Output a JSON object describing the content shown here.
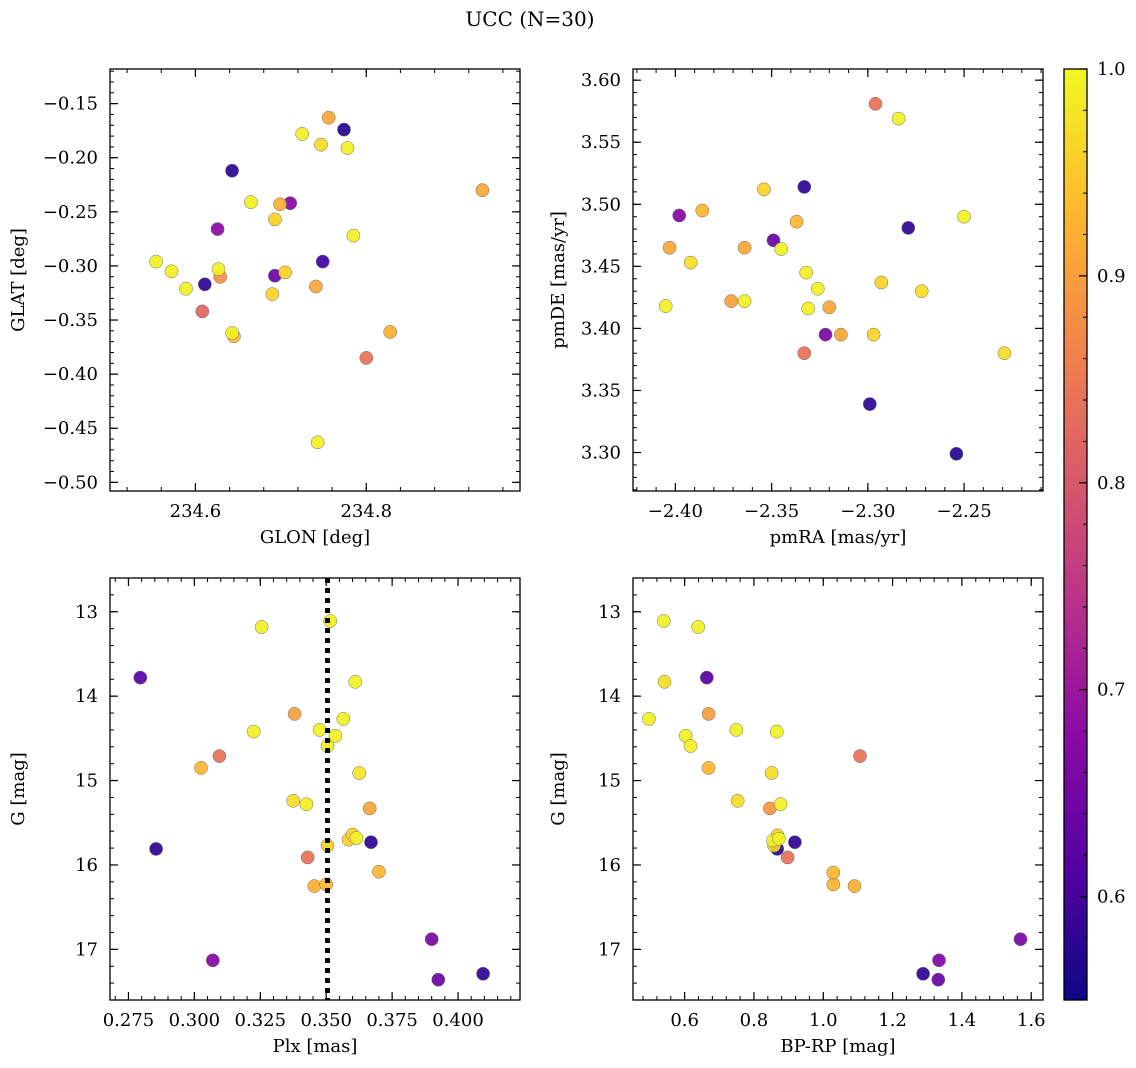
{
  "figure": {
    "title": "UCC (N=30)"
  },
  "colorbar": {
    "min": 0.55,
    "max": 1.0,
    "ticks": [
      0.6,
      0.7,
      0.8,
      0.9,
      1.0
    ],
    "tick_labels": [
      "0.6",
      "0.7",
      "0.8",
      "0.9",
      "1.0"
    ],
    "colormap": "plasma"
  },
  "chart_data": [
    {
      "type": "scatter",
      "title": "",
      "xlabel": "GLON [deg]",
      "ylabel": "GLAT [deg]",
      "xlim": [
        234.5,
        234.98
      ],
      "ylim": [
        -0.508,
        -0.118
      ],
      "y_inverted": false,
      "xticks": [
        234.6,
        234.8
      ],
      "xtick_labels": [
        "234.6",
        "234.8"
      ],
      "yticks": [
        -0.15,
        -0.2,
        -0.25,
        -0.3,
        -0.35,
        -0.4,
        -0.45,
        -0.5
      ],
      "ytick_labels": [
        "−0.15",
        "−0.20",
        "−0.25",
        "−0.30",
        "−0.35",
        "−0.40",
        "−0.45",
        "−0.50"
      ],
      "points": [
        {
          "x": 234.554,
          "y": -0.296,
          "c": 0.99
        },
        {
          "x": 234.572,
          "y": -0.305,
          "c": 0.99
        },
        {
          "x": 234.589,
          "y": -0.321,
          "c": 0.99
        },
        {
          "x": 234.608,
          "y": -0.342,
          "c": 0.82
        },
        {
          "x": 234.611,
          "y": -0.317,
          "c": 0.58
        },
        {
          "x": 234.626,
          "y": -0.266,
          "c": 0.68
        },
        {
          "x": 234.627,
          "y": -0.303,
          "c": 0.99
        },
        {
          "x": 234.629,
          "y": -0.31,
          "c": 0.88
        },
        {
          "x": 234.643,
          "y": -0.212,
          "c": 0.58
        },
        {
          "x": 234.643,
          "y": -0.362,
          "c": 0.99
        },
        {
          "x": 234.645,
          "y": -0.365,
          "c": 0.93
        },
        {
          "x": 234.665,
          "y": -0.241,
          "c": 0.99
        },
        {
          "x": 234.69,
          "y": -0.326,
          "c": 0.96
        },
        {
          "x": 234.693,
          "y": -0.309,
          "c": 0.64
        },
        {
          "x": 234.693,
          "y": -0.257,
          "c": 0.96
        },
        {
          "x": 234.699,
          "y": -0.243,
          "c": 0.92
        },
        {
          "x": 234.705,
          "y": -0.306,
          "c": 0.96
        },
        {
          "x": 234.711,
          "y": -0.242,
          "c": 0.67
        },
        {
          "x": 234.725,
          "y": -0.178,
          "c": 0.99
        },
        {
          "x": 234.741,
          "y": -0.319,
          "c": 0.91
        },
        {
          "x": 234.743,
          "y": -0.463,
          "c": 0.99
        },
        {
          "x": 234.747,
          "y": -0.188,
          "c": 0.97
        },
        {
          "x": 234.749,
          "y": -0.296,
          "c": 0.6
        },
        {
          "x": 234.756,
          "y": -0.163,
          "c": 0.91
        },
        {
          "x": 234.774,
          "y": -0.174,
          "c": 0.57
        },
        {
          "x": 234.778,
          "y": -0.191,
          "c": 0.99
        },
        {
          "x": 234.785,
          "y": -0.272,
          "c": 0.99
        },
        {
          "x": 234.8,
          "y": -0.385,
          "c": 0.84
        },
        {
          "x": 234.828,
          "y": -0.361,
          "c": 0.92
        },
        {
          "x": 234.936,
          "y": -0.23,
          "c": 0.91
        }
      ]
    },
    {
      "type": "scatter",
      "title": "",
      "xlabel": "pmRA [mas/yr]",
      "ylabel": "pmDE [mas/yr]",
      "xlim": [
        -2.422,
        -2.209
      ],
      "ylim": [
        3.269,
        3.609
      ],
      "y_inverted": false,
      "xticks": [
        -2.4,
        -2.35,
        -2.3,
        -2.25
      ],
      "xtick_labels": [
        "−2.40",
        "−2.35",
        "−2.30",
        "−2.25"
      ],
      "yticks": [
        3.3,
        3.35,
        3.4,
        3.45,
        3.5,
        3.55,
        3.6
      ],
      "ytick_labels": [
        "3.30",
        "3.35",
        "3.40",
        "3.45",
        "3.50",
        "3.55",
        "3.60"
      ],
      "points": [
        {
          "x": -2.405,
          "y": 3.418,
          "c": 0.99
        },
        {
          "x": -2.403,
          "y": 3.465,
          "c": 0.91
        },
        {
          "x": -2.398,
          "y": 3.491,
          "c": 0.67
        },
        {
          "x": -2.392,
          "y": 3.453,
          "c": 0.97
        },
        {
          "x": -2.386,
          "y": 3.495,
          "c": 0.93
        },
        {
          "x": -2.371,
          "y": 3.422,
          "c": 0.9
        },
        {
          "x": -2.364,
          "y": 3.422,
          "c": 0.99
        },
        {
          "x": -2.364,
          "y": 3.465,
          "c": 0.91
        },
        {
          "x": -2.354,
          "y": 3.512,
          "c": 0.96
        },
        {
          "x": -2.349,
          "y": 3.471,
          "c": 0.64
        },
        {
          "x": -2.345,
          "y": 3.464,
          "c": 0.99
        },
        {
          "x": -2.337,
          "y": 3.486,
          "c": 0.93
        },
        {
          "x": -2.333,
          "y": 3.514,
          "c": 0.58
        },
        {
          "x": -2.333,
          "y": 3.38,
          "c": 0.84
        },
        {
          "x": -2.332,
          "y": 3.445,
          "c": 0.99
        },
        {
          "x": -2.331,
          "y": 3.416,
          "c": 0.99
        },
        {
          "x": -2.326,
          "y": 3.432,
          "c": 0.99
        },
        {
          "x": -2.322,
          "y": 3.395,
          "c": 0.66
        },
        {
          "x": -2.32,
          "y": 3.417,
          "c": 0.91
        },
        {
          "x": -2.314,
          "y": 3.395,
          "c": 0.91
        },
        {
          "x": -2.299,
          "y": 3.339,
          "c": 0.58
        },
        {
          "x": -2.297,
          "y": 3.395,
          "c": 0.96
        },
        {
          "x": -2.296,
          "y": 3.581,
          "c": 0.84
        },
        {
          "x": -2.293,
          "y": 3.437,
          "c": 0.96
        },
        {
          "x": -2.284,
          "y": 3.569,
          "c": 0.99
        },
        {
          "x": -2.279,
          "y": 3.481,
          "c": 0.58
        },
        {
          "x": -2.272,
          "y": 3.43,
          "c": 0.97
        },
        {
          "x": -2.254,
          "y": 3.299,
          "c": 0.57
        },
        {
          "x": -2.25,
          "y": 3.49,
          "c": 0.99
        },
        {
          "x": -2.229,
          "y": 3.38,
          "c": 0.97
        }
      ]
    },
    {
      "type": "scatter",
      "title": "",
      "xlabel": "Plx [mas]",
      "ylabel": "G [mag]",
      "xlim": [
        0.268,
        0.4235
      ],
      "ylim": [
        17.6,
        12.6
      ],
      "y_inverted": true,
      "xticks": [
        0.275,
        0.3,
        0.325,
        0.35,
        0.375,
        0.4
      ],
      "xtick_labels": [
        "0.275",
        "0.300",
        "0.325",
        "0.350",
        "0.375",
        "0.400"
      ],
      "yticks": [
        13,
        14,
        15,
        16,
        17
      ],
      "ytick_labels": [
        "13",
        "14",
        "15",
        "16",
        "17"
      ],
      "vline": 0.3505,
      "points": [
        {
          "x": 0.2795,
          "y": 13.78,
          "c": 0.62
        },
        {
          "x": 0.2855,
          "y": 15.81,
          "c": 0.58
        },
        {
          "x": 0.3025,
          "y": 14.85,
          "c": 0.93
        },
        {
          "x": 0.307,
          "y": 17.13,
          "c": 0.67
        },
        {
          "x": 0.3095,
          "y": 14.71,
          "c": 0.84
        },
        {
          "x": 0.3225,
          "y": 14.42,
          "c": 0.99
        },
        {
          "x": 0.3255,
          "y": 13.18,
          "c": 0.99
        },
        {
          "x": 0.3375,
          "y": 15.24,
          "c": 0.97
        },
        {
          "x": 0.338,
          "y": 14.21,
          "c": 0.9
        },
        {
          "x": 0.3425,
          "y": 15.28,
          "c": 0.99
        },
        {
          "x": 0.343,
          "y": 15.91,
          "c": 0.84
        },
        {
          "x": 0.3455,
          "y": 16.25,
          "c": 0.92
        },
        {
          "x": 0.3475,
          "y": 14.4,
          "c": 0.99
        },
        {
          "x": 0.35,
          "y": 16.23,
          "c": 0.93
        },
        {
          "x": 0.3505,
          "y": 14.59,
          "c": 0.99
        },
        {
          "x": 0.3505,
          "y": 15.77,
          "c": 0.96
        },
        {
          "x": 0.3515,
          "y": 13.11,
          "c": 0.99
        },
        {
          "x": 0.3535,
          "y": 14.47,
          "c": 0.99
        },
        {
          "x": 0.3565,
          "y": 14.27,
          "c": 0.99
        },
        {
          "x": 0.3585,
          "y": 15.7,
          "c": 0.96
        },
        {
          "x": 0.36,
          "y": 15.64,
          "c": 0.96
        },
        {
          "x": 0.361,
          "y": 13.83,
          "c": 0.99
        },
        {
          "x": 0.3615,
          "y": 15.68,
          "c": 0.99
        },
        {
          "x": 0.3625,
          "y": 14.91,
          "c": 0.98
        },
        {
          "x": 0.3665,
          "y": 15.33,
          "c": 0.91
        },
        {
          "x": 0.367,
          "y": 15.73,
          "c": 0.58
        },
        {
          "x": 0.37,
          "y": 16.08,
          "c": 0.93
        },
        {
          "x": 0.39,
          "y": 16.88,
          "c": 0.66
        },
        {
          "x": 0.3925,
          "y": 17.36,
          "c": 0.64
        },
        {
          "x": 0.4095,
          "y": 17.29,
          "c": 0.58
        }
      ]
    },
    {
      "type": "scatter",
      "title": "",
      "xlabel": "BP-RP [mag]",
      "ylabel": "G [mag]",
      "xlim": [
        0.451,
        1.634
      ],
      "ylim": [
        17.6,
        12.6
      ],
      "y_inverted": true,
      "xticks": [
        0.6,
        0.8,
        1.0,
        1.2,
        1.4,
        1.6
      ],
      "xtick_labels": [
        "0.6",
        "0.8",
        "1.0",
        "1.2",
        "1.4",
        "1.6"
      ],
      "yticks": [
        13,
        14,
        15,
        16,
        17
      ],
      "ytick_labels": [
        "13",
        "14",
        "15",
        "16",
        "17"
      ],
      "points": [
        {
          "x": 0.497,
          "y": 14.27,
          "c": 0.99
        },
        {
          "x": 0.54,
          "y": 13.11,
          "c": 0.99
        },
        {
          "x": 0.542,
          "y": 13.83,
          "c": 0.97
        },
        {
          "x": 0.603,
          "y": 14.47,
          "c": 0.99
        },
        {
          "x": 0.617,
          "y": 14.59,
          "c": 0.99
        },
        {
          "x": 0.639,
          "y": 13.18,
          "c": 0.99
        },
        {
          "x": 0.664,
          "y": 13.78,
          "c": 0.62
        },
        {
          "x": 0.669,
          "y": 14.21,
          "c": 0.9
        },
        {
          "x": 0.669,
          "y": 14.85,
          "c": 0.93
        },
        {
          "x": 0.749,
          "y": 14.4,
          "c": 0.99
        },
        {
          "x": 0.753,
          "y": 15.24,
          "c": 0.97
        },
        {
          "x": 0.846,
          "y": 15.33,
          "c": 0.89
        },
        {
          "x": 0.851,
          "y": 14.91,
          "c": 0.97
        },
        {
          "x": 0.855,
          "y": 15.71,
          "c": 0.99
        },
        {
          "x": 0.858,
          "y": 15.77,
          "c": 0.96
        },
        {
          "x": 0.866,
          "y": 14.42,
          "c": 0.99
        },
        {
          "x": 0.867,
          "y": 15.81,
          "c": 0.58
        },
        {
          "x": 0.868,
          "y": 15.65,
          "c": 0.96
        },
        {
          "x": 0.872,
          "y": 15.69,
          "c": 0.99
        },
        {
          "x": 0.877,
          "y": 15.28,
          "c": 0.99
        },
        {
          "x": 0.897,
          "y": 15.91,
          "c": 0.84
        },
        {
          "x": 0.918,
          "y": 15.73,
          "c": 0.58
        },
        {
          "x": 1.029,
          "y": 16.09,
          "c": 0.93
        },
        {
          "x": 1.029,
          "y": 16.23,
          "c": 0.92
        },
        {
          "x": 1.09,
          "y": 16.25,
          "c": 0.92
        },
        {
          "x": 1.106,
          "y": 14.71,
          "c": 0.84
        },
        {
          "x": 1.288,
          "y": 17.29,
          "c": 0.58
        },
        {
          "x": 1.332,
          "y": 17.36,
          "c": 0.64
        },
        {
          "x": 1.334,
          "y": 17.13,
          "c": 0.67
        },
        {
          "x": 1.569,
          "y": 16.88,
          "c": 0.66
        }
      ]
    }
  ]
}
